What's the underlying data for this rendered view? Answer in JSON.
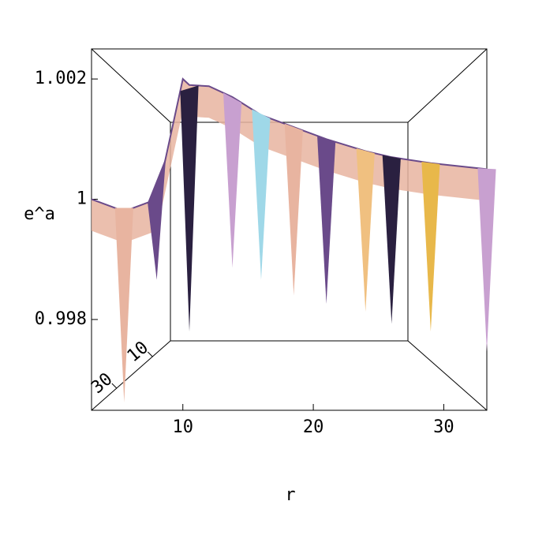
{
  "chart_data": {
    "type": "surface",
    "x_label": "r",
    "y_label": "e^a",
    "x": [
      3,
      5.5,
      8,
      10,
      10.5,
      12,
      13.8,
      16,
      18.5,
      21,
      24,
      26,
      29,
      33.3
    ],
    "series": [
      {
        "color": "#e8b4a0",
        "values": [
          1.0,
          0.9998,
          1.0,
          1.002,
          1.0019,
          1.00188,
          1.0017,
          1.0014,
          1.0012,
          1.001,
          1.0008,
          1.0007,
          1.0006,
          1.0005
        ]
      },
      {
        "color": "#e8b84a",
        "values": [
          null,
          0.99662,
          0.99866,
          null,
          0.9978,
          null,
          0.99886,
          0.99866,
          0.9984,
          0.99826,
          0.99813,
          0.99793,
          0.9978,
          0.99747
        ]
      }
    ],
    "colors": [
      "#9fd8e8",
      "#e8b4a0",
      "#6a4a8a",
      "#f0c080",
      "#2a2040",
      "#e8b84a",
      "#c8a0d0"
    ],
    "xlim": [
      3,
      33.3
    ],
    "xticks": [
      10,
      20,
      30
    ],
    "ylim": [
      0.99649,
      1.0025
    ],
    "yticks": [
      1.002,
      1,
      0.998
    ],
    "zlim": [
      0,
      44
    ],
    "zticks": [
      10,
      30
    ]
  }
}
